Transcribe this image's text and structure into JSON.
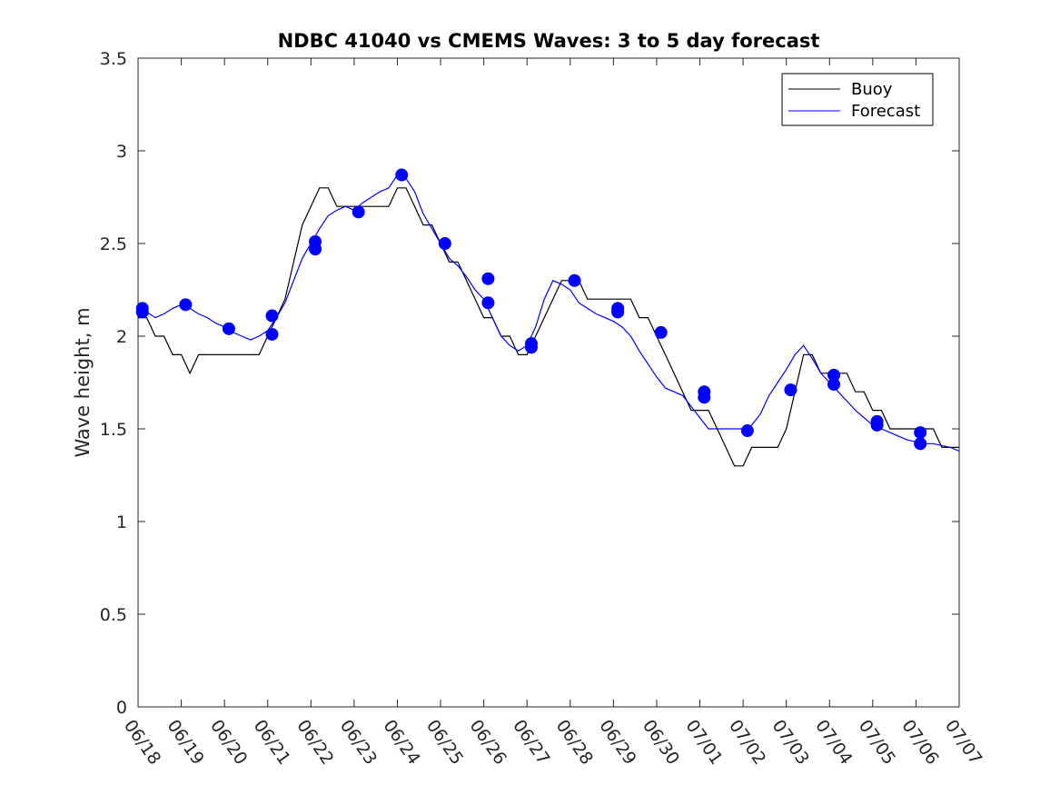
{
  "chart_data": {
    "type": "line",
    "title": "NDBC 41040 vs CMEMS Waves: 3 to 5 day forecast",
    "xlabel": "",
    "ylabel": "Wave height, m",
    "ylim": [
      0,
      3.5
    ],
    "yticks": [
      "0",
      "0.5",
      "1",
      "1.5",
      "2",
      "2.5",
      "3",
      "3.5"
    ],
    "xlim": [
      "06/18",
      "07/07"
    ],
    "xticks": [
      "06/18",
      "06/19",
      "06/20",
      "06/21",
      "06/22",
      "06/23",
      "06/24",
      "06/25",
      "06/26",
      "06/27",
      "06/28",
      "06/29",
      "06/30",
      "07/01",
      "07/02",
      "07/03",
      "07/04",
      "07/05",
      "07/06",
      "07/07"
    ],
    "x_unit": "day index from 06/18",
    "legend": {
      "placement": "top-right",
      "entries": [
        "Buoy",
        "Forecast"
      ]
    },
    "colors": {
      "buoy": "#000000",
      "forecast": "#0000ff"
    },
    "series": [
      {
        "name": "Buoy",
        "x": [
          0,
          0.2,
          0.4,
          0.6,
          0.8,
          1.0,
          1.2,
          1.4,
          1.6,
          1.8,
          2.0,
          2.2,
          2.4,
          2.6,
          2.8,
          3.0,
          3.2,
          3.4,
          3.6,
          3.8,
          4.0,
          4.2,
          4.4,
          4.6,
          4.8,
          5.0,
          5.2,
          5.4,
          5.6,
          5.8,
          6.0,
          6.2,
          6.4,
          6.6,
          6.8,
          7.0,
          7.2,
          7.4,
          7.6,
          7.8,
          8.0,
          8.2,
          8.4,
          8.6,
          8.8,
          9.0,
          9.2,
          9.4,
          9.6,
          9.8,
          10.0,
          10.2,
          10.4,
          10.6,
          10.8,
          11.0,
          11.2,
          11.4,
          11.6,
          11.8,
          12.0,
          12.2,
          12.4,
          12.6,
          12.8,
          13.0,
          13.2,
          13.4,
          13.6,
          13.8,
          14.0,
          14.2,
          14.4,
          14.6,
          14.8,
          15.0,
          15.2,
          15.4,
          15.6,
          15.8,
          16.0,
          16.2,
          16.4,
          16.6,
          16.8,
          17.0,
          17.2,
          17.4,
          17.6,
          17.8,
          18.0,
          18.2,
          18.4,
          18.6,
          18.8,
          19.0
        ],
        "y": [
          2.1,
          2.1,
          2.0,
          2.0,
          1.9,
          1.9,
          1.8,
          1.9,
          1.9,
          1.9,
          1.9,
          1.9,
          1.9,
          1.9,
          1.9,
          2.0,
          2.1,
          2.2,
          2.4,
          2.6,
          2.7,
          2.8,
          2.8,
          2.7,
          2.7,
          2.7,
          2.7,
          2.7,
          2.7,
          2.7,
          2.8,
          2.8,
          2.7,
          2.6,
          2.6,
          2.5,
          2.4,
          2.4,
          2.3,
          2.2,
          2.1,
          2.1,
          2.0,
          2.0,
          1.9,
          1.9,
          2.0,
          2.1,
          2.2,
          2.3,
          2.3,
          2.3,
          2.2,
          2.2,
          2.2,
          2.2,
          2.2,
          2.2,
          2.1,
          2.1,
          2.0,
          1.9,
          1.8,
          1.7,
          1.6,
          1.6,
          1.6,
          1.5,
          1.4,
          1.3,
          1.3,
          1.4,
          1.4,
          1.4,
          1.4,
          1.5,
          1.7,
          1.9,
          1.9,
          1.8,
          1.8,
          1.8,
          1.8,
          1.7,
          1.7,
          1.6,
          1.6,
          1.5,
          1.5,
          1.5,
          1.5,
          1.5,
          1.5,
          1.4,
          1.4,
          1.4
        ]
      },
      {
        "name": "Forecast",
        "x": [
          0,
          0.2,
          0.4,
          0.6,
          0.8,
          1.0,
          1.2,
          1.4,
          1.6,
          1.8,
          2.0,
          2.2,
          2.4,
          2.6,
          2.8,
          3.0,
          3.2,
          3.4,
          3.6,
          3.8,
          4.0,
          4.2,
          4.4,
          4.6,
          4.8,
          5.0,
          5.2,
          5.4,
          5.6,
          5.8,
          6.0,
          6.2,
          6.4,
          6.6,
          6.8,
          7.0,
          7.2,
          7.4,
          7.6,
          7.8,
          8.0,
          8.2,
          8.4,
          8.6,
          8.8,
          9.0,
          9.2,
          9.4,
          9.6,
          9.8,
          10.0,
          10.2,
          10.4,
          10.6,
          10.8,
          11.0,
          11.2,
          11.4,
          11.6,
          11.8,
          12.0,
          12.2,
          12.4,
          12.6,
          12.8,
          13.0,
          13.2,
          13.4,
          13.6,
          13.8,
          14.0,
          14.2,
          14.4,
          14.6,
          14.8,
          15.0,
          15.2,
          15.4,
          15.6,
          15.8,
          16.0,
          16.2,
          16.4,
          16.6,
          16.8,
          17.0,
          17.2,
          17.4,
          17.6,
          17.8,
          18.0,
          18.2,
          18.4,
          18.6,
          18.8,
          19.0
        ],
        "y": [
          2.13,
          2.13,
          2.1,
          2.12,
          2.15,
          2.17,
          2.15,
          2.12,
          2.1,
          2.07,
          2.05,
          2.02,
          2.0,
          1.98,
          2.0,
          2.03,
          2.1,
          2.18,
          2.3,
          2.42,
          2.5,
          2.58,
          2.65,
          2.68,
          2.7,
          2.68,
          2.72,
          2.75,
          2.78,
          2.8,
          2.87,
          2.85,
          2.78,
          2.66,
          2.58,
          2.5,
          2.42,
          2.38,
          2.32,
          2.25,
          2.2,
          2.1,
          2.0,
          1.95,
          1.92,
          1.95,
          2.05,
          2.2,
          2.3,
          2.28,
          2.25,
          2.18,
          2.15,
          2.12,
          2.1,
          2.08,
          2.05,
          2.0,
          1.92,
          1.85,
          1.78,
          1.72,
          1.7,
          1.68,
          1.62,
          1.56,
          1.5,
          1.5,
          1.5,
          1.5,
          1.5,
          1.52,
          1.58,
          1.68,
          1.75,
          1.82,
          1.9,
          1.95,
          1.88,
          1.8,
          1.75,
          1.7,
          1.65,
          1.6,
          1.56,
          1.52,
          1.5,
          1.48,
          1.46,
          1.44,
          1.43,
          1.42,
          1.42,
          1.41,
          1.4,
          1.38
        ]
      }
    ],
    "forecast_markers": {
      "x": [
        0.1,
        0.1,
        1.1,
        2.1,
        3.1,
        3.1,
        4.1,
        4.1,
        5.1,
        6.1,
        7.1,
        8.1,
        8.1,
        9.1,
        9.1,
        10.1,
        11.1,
        11.1,
        12.1,
        13.1,
        13.1,
        14.1,
        15.1,
        16.1,
        16.1,
        17.1,
        17.1,
        18.1,
        18.1
      ],
      "y": [
        2.15,
        2.13,
        2.17,
        2.04,
        2.11,
        2.01,
        2.51,
        2.47,
        2.67,
        2.87,
        2.5,
        2.31,
        2.18,
        1.96,
        1.94,
        2.3,
        2.15,
        2.13,
        2.02,
        1.7,
        1.67,
        1.49,
        1.71,
        1.79,
        1.74,
        1.54,
        1.52,
        1.48,
        1.42
      ]
    }
  }
}
